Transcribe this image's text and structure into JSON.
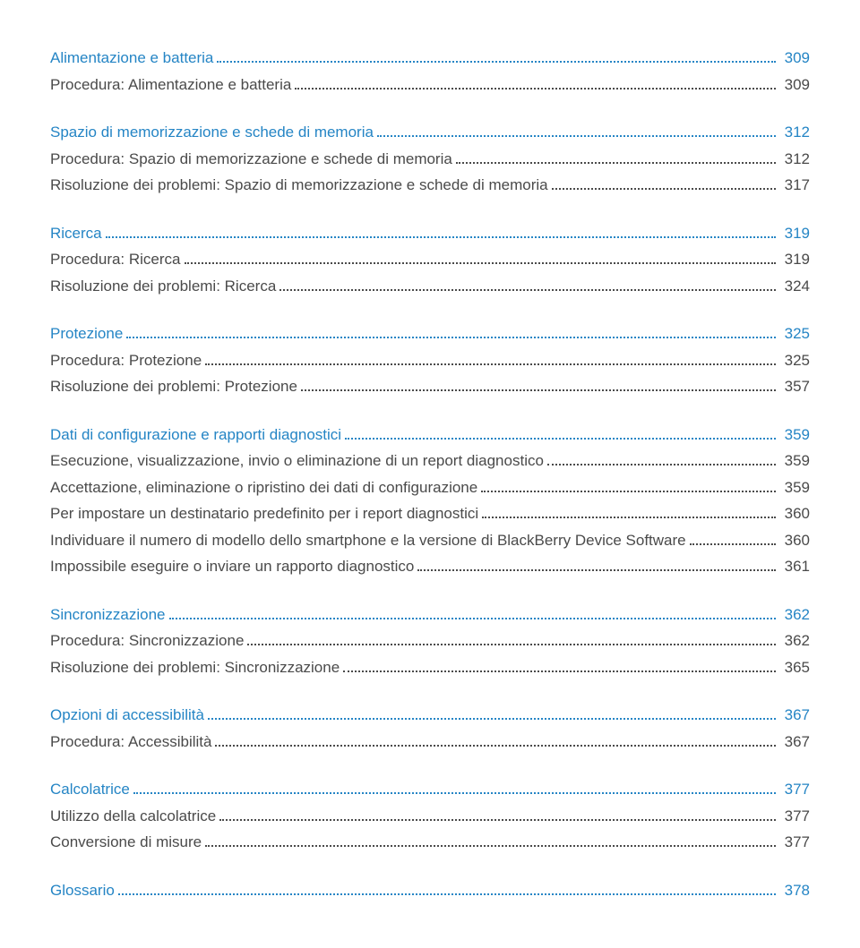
{
  "colors": {
    "blue": "#2585c5",
    "gray": "#4a4a4a"
  },
  "toc": [
    {
      "label": "Alimentazione e batteria",
      "page": "309",
      "style": "blue",
      "gap": false
    },
    {
      "label": "Procedura: Alimentazione e batteria",
      "page": "309",
      "style": "gray",
      "gap": false
    },
    {
      "label": "Spazio di memorizzazione e schede di memoria",
      "page": "312",
      "style": "blue",
      "gap": true
    },
    {
      "label": "Procedura: Spazio di memorizzazione e schede di memoria",
      "page": "312",
      "style": "gray",
      "gap": false
    },
    {
      "label": "Risoluzione dei problemi: Spazio di memorizzazione e schede di memoria",
      "page": "317",
      "style": "gray",
      "gap": false
    },
    {
      "label": "Ricerca",
      "page": "319",
      "style": "blue",
      "gap": true
    },
    {
      "label": "Procedura: Ricerca",
      "page": "319",
      "style": "gray",
      "gap": false
    },
    {
      "label": "Risoluzione dei problemi: Ricerca",
      "page": "324",
      "style": "gray",
      "gap": false
    },
    {
      "label": "Protezione",
      "page": "325",
      "style": "blue",
      "gap": true
    },
    {
      "label": "Procedura: Protezione",
      "page": "325",
      "style": "gray",
      "gap": false
    },
    {
      "label": "Risoluzione dei problemi: Protezione",
      "page": "357",
      "style": "gray",
      "gap": false
    },
    {
      "label": "Dati di configurazione e rapporti diagnostici",
      "page": "359",
      "style": "blue",
      "gap": true
    },
    {
      "label": "Esecuzione, visualizzazione, invio o eliminazione di un report diagnostico",
      "page": "359",
      "style": "gray",
      "gap": false
    },
    {
      "label": "Accettazione, eliminazione o ripristino dei dati di configurazione",
      "page": "359",
      "style": "gray",
      "gap": false
    },
    {
      "label": "Per impostare un destinatario predefinito per i report diagnostici",
      "page": "360",
      "style": "gray",
      "gap": false
    },
    {
      "label": "Individuare il numero di modello dello smartphone e la versione di BlackBerry Device Software",
      "page": "360",
      "style": "gray",
      "gap": false
    },
    {
      "label": "Impossibile eseguire o inviare un rapporto diagnostico",
      "page": "361",
      "style": "gray",
      "gap": false
    },
    {
      "label": "Sincronizzazione",
      "page": "362",
      "style": "blue",
      "gap": true
    },
    {
      "label": "Procedura: Sincronizzazione",
      "page": "362",
      "style": "gray",
      "gap": false
    },
    {
      "label": "Risoluzione dei problemi: Sincronizzazione",
      "page": "365",
      "style": "gray",
      "gap": false
    },
    {
      "label": "Opzioni di accessibilità",
      "page": "367",
      "style": "blue",
      "gap": true
    },
    {
      "label": "Procedura: Accessibilità",
      "page": "367",
      "style": "gray",
      "gap": false
    },
    {
      "label": "Calcolatrice",
      "page": "377",
      "style": "blue",
      "gap": true
    },
    {
      "label": "Utilizzo della calcolatrice",
      "page": "377",
      "style": "gray",
      "gap": false
    },
    {
      "label": "Conversione di misure",
      "page": "377",
      "style": "gray",
      "gap": false
    },
    {
      "label": "Glossario",
      "page": "378",
      "style": "blue",
      "gap": true
    }
  ]
}
